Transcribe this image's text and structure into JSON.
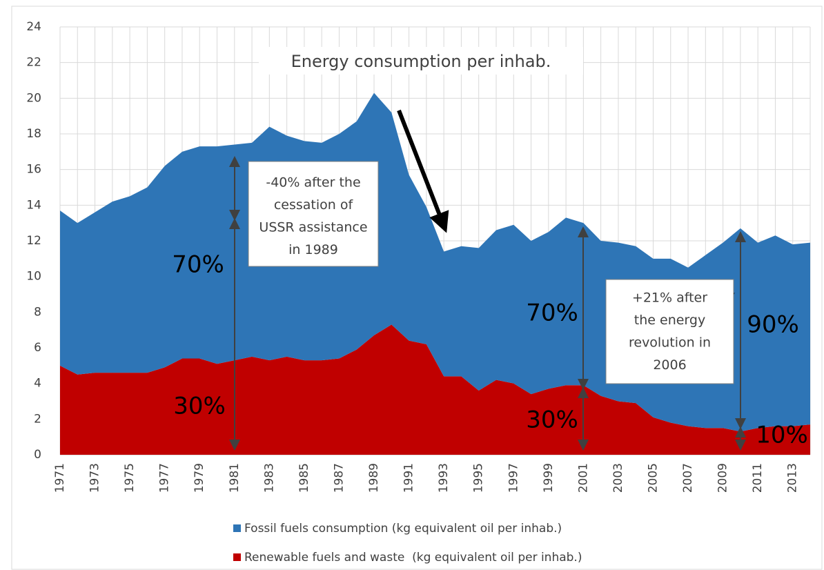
{
  "chart_data": {
    "type": "stacked-area",
    "title": "Energy consumption per inhab.",
    "categories": [
      "1971",
      null,
      "1973",
      null,
      "1975",
      null,
      "1977",
      null,
      "1979",
      null,
      "1981",
      null,
      "1983",
      null,
      "1985",
      null,
      "1987",
      null,
      "1989",
      null,
      "1991",
      null,
      "1993",
      null,
      "1995",
      null,
      "1997",
      null,
      "1999",
      null,
      "2001",
      null,
      "2003",
      null,
      "2005",
      null,
      "2007",
      null,
      "2009",
      null,
      "2011",
      null,
      "2013",
      null
    ],
    "series": [
      {
        "name": "Renewable fuels and waste  (kg equivalent oil per inhab.)",
        "color": "#c00000",
        "values": [
          5.0,
          4.5,
          4.6,
          4.6,
          4.6,
          4.6,
          4.9,
          5.4,
          5.4,
          5.1,
          5.3,
          5.5,
          5.3,
          5.5,
          5.3,
          5.3,
          5.4,
          5.9,
          6.7,
          7.3,
          6.4,
          6.2,
          4.4,
          4.4,
          3.6,
          4.2,
          4.0,
          3.4,
          3.7,
          3.9,
          3.9,
          3.3,
          3.0,
          2.9,
          2.1,
          1.8,
          1.6,
          1.5,
          1.5,
          1.3,
          1.5,
          1.6,
          1.6,
          1.7
        ]
      },
      {
        "name": "Fossil fuels consumption (kg equivalent oil per inhab.)",
        "color": "#2e75b6",
        "values": [
          8.7,
          8.5,
          9.0,
          9.6,
          9.9,
          10.4,
          11.3,
          11.6,
          11.9,
          12.2,
          12.1,
          12.0,
          13.1,
          12.4,
          12.3,
          12.2,
          12.6,
          12.8,
          13.6,
          11.9,
          9.3,
          7.7,
          7.0,
          7.3,
          8.0,
          8.4,
          8.9,
          8.6,
          8.8,
          9.4,
          9.1,
          8.7,
          8.9,
          8.8,
          8.9,
          9.2,
          8.9,
          9.7,
          10.4,
          11.4,
          10.4,
          10.7,
          10.2,
          10.2
        ]
      }
    ],
    "ylim": [
      0,
      24
    ],
    "yticks": [
      0,
      2,
      4,
      6,
      8,
      10,
      12,
      14,
      16,
      18,
      20,
      22,
      24
    ],
    "grid": true,
    "annotations": [
      "70%",
      "30%",
      "70%",
      "30%",
      "90%",
      "10%"
    ],
    "notes": [
      [
        "-40% after the",
        "cessation of",
        "USSR assistance",
        "in 1989"
      ],
      [
        "+21% after",
        "the energy",
        "revolution in",
        "2006"
      ]
    ]
  }
}
